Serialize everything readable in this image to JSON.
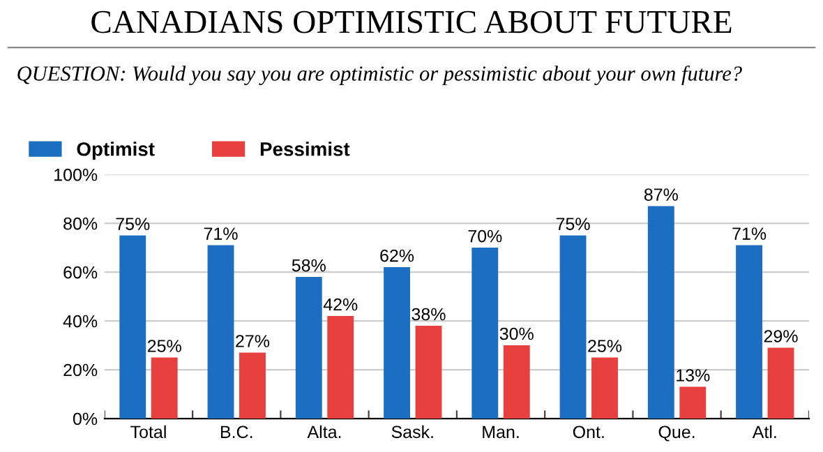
{
  "chart_data": {
    "type": "bar",
    "title": "CANADIANS OPTIMISTIC ABOUT FUTURE",
    "subtitle": "QUESTION: Would you say you are optimistic or pessimistic about your own future?",
    "categories": [
      "Total",
      "B.C.",
      "Alta.",
      "Sask.",
      "Man.",
      "Ont.",
      "Que.",
      "Atl."
    ],
    "series": [
      {
        "name": "Optimist",
        "color": "#1b6ec2",
        "values": [
          75,
          71,
          58,
          62,
          70,
          75,
          87,
          71
        ],
        "value_labels": [
          "75%",
          "71%",
          "58%",
          "62%",
          "70%",
          "75%",
          "87%",
          "71%"
        ]
      },
      {
        "name": "Pessimist",
        "color": "#e8403e",
        "values": [
          25,
          27,
          42,
          38,
          30,
          25,
          13,
          29
        ],
        "value_labels": [
          "25%",
          "27%",
          "42%",
          "38%",
          "30%",
          "25%",
          "13%",
          "29%"
        ]
      }
    ],
    "ylim": [
      0,
      100
    ],
    "yticks": [
      {
        "value": 0,
        "label": "0%"
      },
      {
        "value": 20,
        "label": "20%"
      },
      {
        "value": 40,
        "label": "40%"
      },
      {
        "value": 60,
        "label": "60%"
      },
      {
        "value": 80,
        "label": "80%"
      },
      {
        "value": 100,
        "label": "100%"
      }
    ],
    "grid": "y",
    "legend": "top left"
  }
}
